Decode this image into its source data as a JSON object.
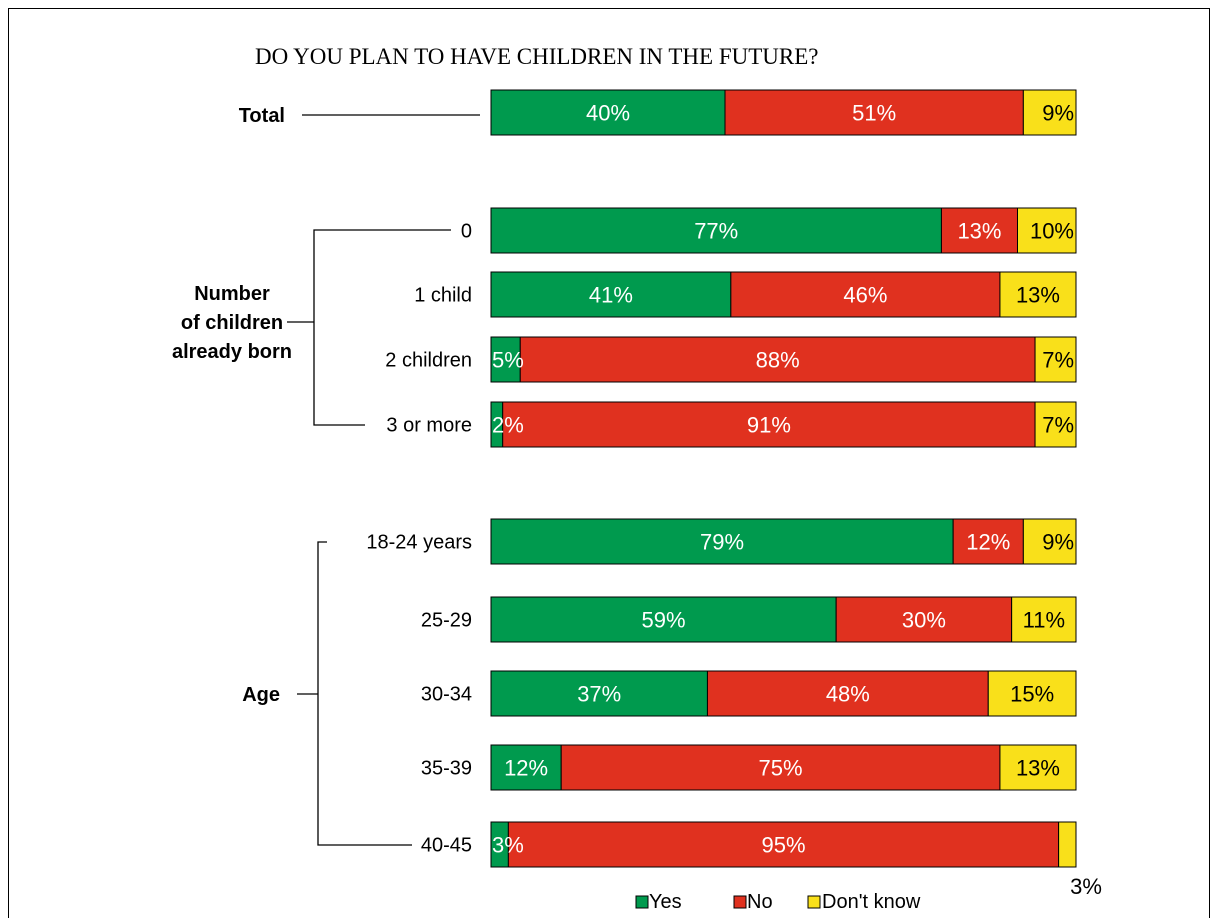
{
  "chart_data": {
    "type": "bar",
    "orientation": "horizontal",
    "stacked": true,
    "percent_stacked": true,
    "title": "DO YOU PLAN TO HAVE CHILDREN IN THE FUTURE?",
    "xlim": [
      0,
      100
    ],
    "grid": false,
    "legend_position": "bottom",
    "series": [
      {
        "name": "Yes",
        "color": "#009a4e"
      },
      {
        "name": "No",
        "color": "#e0311f"
      },
      {
        "name": "Don't know",
        "color": "#f9e01a"
      }
    ],
    "groups": [
      {
        "label": "Total",
        "rows": [
          {
            "label": "",
            "values": [
              40,
              51,
              9
            ],
            "labels": [
              "40%",
              "51%",
              "9%"
            ]
          }
        ]
      },
      {
        "label": "Number\nof children\nalready born",
        "rows": [
          {
            "label": "0",
            "values": [
              77,
              13,
              10
            ],
            "labels": [
              "77%",
              "13%",
              "10%"
            ]
          },
          {
            "label": "1 child",
            "values": [
              41,
              46,
              13
            ],
            "labels": [
              "41%",
              "46%",
              "13%"
            ]
          },
          {
            "label": "2 children",
            "values": [
              5,
              88,
              7
            ],
            "labels": [
              "5%",
              "88%",
              "7%"
            ]
          },
          {
            "label": "3 or more",
            "values": [
              2,
              91,
              7
            ],
            "labels": [
              "2%",
              "91%",
              "7%"
            ]
          }
        ]
      },
      {
        "label": "Age",
        "rows": [
          {
            "label": "18-24 years",
            "values": [
              79,
              12,
              9
            ],
            "labels": [
              "79%",
              "12%",
              "9%"
            ]
          },
          {
            "label": "25-29",
            "values": [
              59,
              30,
              11
            ],
            "labels": [
              "59%",
              "30%",
              "11%"
            ]
          },
          {
            "label": "30-34",
            "values": [
              37,
              48,
              15
            ],
            "labels": [
              "37%",
              "48%",
              "15%"
            ]
          },
          {
            "label": "35-39",
            "values": [
              12,
              75,
              13
            ],
            "labels": [
              "12%",
              "75%",
              "13%"
            ]
          },
          {
            "label": "40-45",
            "values": [
              3,
              95,
              3
            ],
            "labels": [
              "3%",
              "95%",
              "3%"
            ]
          }
        ]
      }
    ]
  }
}
